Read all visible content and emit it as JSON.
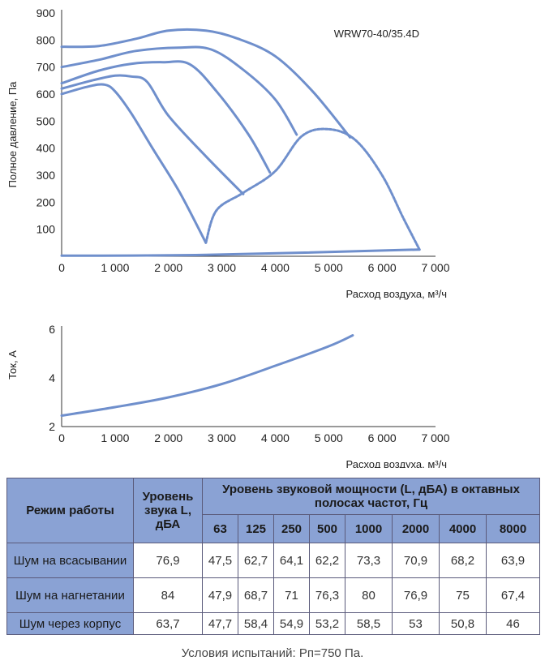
{
  "chart_data": [
    {
      "type": "line",
      "title": "",
      "model_label": "WRW70-40/35.4D",
      "xlabel": "Расход воздуха, м³/ч",
      "ylabel": "Полное давление, Па",
      "xlim": [
        0,
        7000
      ],
      "ylim": [
        0,
        900
      ],
      "xticks": [
        "0",
        "1 000",
        "2 000",
        "3 000",
        "4 000",
        "5 000",
        "6 000",
        "7 000"
      ],
      "yticks": [
        "100",
        "200",
        "300",
        "400",
        "500",
        "600",
        "700",
        "800",
        "900"
      ],
      "grid": false,
      "series": [
        {
          "style": "solid",
          "x": [
            0,
            700,
            1400,
            2000,
            2700,
            3300,
            4000,
            4700,
            5400
          ],
          "y": [
            775,
            778,
            805,
            835,
            835,
            805,
            740,
            610,
            440
          ]
        },
        {
          "style": "solid",
          "x": [
            0,
            700,
            1400,
            2200,
            2800,
            3400,
            4000,
            4400
          ],
          "y": [
            700,
            727,
            760,
            772,
            765,
            690,
            580,
            450
          ]
        },
        {
          "style": "solid",
          "x": [
            0,
            700,
            1300,
            1900,
            2400,
            2900,
            3500,
            3900
          ],
          "y": [
            640,
            687,
            712,
            718,
            710,
            610,
            450,
            310
          ]
        },
        {
          "style": "solid",
          "x": [
            0,
            600,
            1000,
            1300,
            1600,
            2000,
            2700,
            3400
          ],
          "y": [
            620,
            652,
            668,
            665,
            645,
            520,
            370,
            230
          ]
        },
        {
          "style": "solid",
          "x": [
            0,
            500,
            800,
            1000,
            1300,
            1700,
            2200,
            2700
          ],
          "y": [
            600,
            628,
            635,
            610,
            530,
            400,
            240,
            50
          ]
        },
        {
          "style": "dashed",
          "x": [
            2700,
            2900,
            3400,
            4000,
            4500,
            5000,
            5500,
            6000,
            6400,
            6700
          ],
          "y": [
            50,
            170,
            235,
            315,
            445,
            470,
            430,
            300,
            140,
            25
          ]
        },
        {
          "style": "solid",
          "x": [
            0,
            2700,
            6700
          ],
          "y": [
            2,
            5,
            25
          ]
        }
      ]
    },
    {
      "type": "line",
      "title": "",
      "xlabel": "Расход воздуха, м³/ч",
      "ylabel": "Ток, А",
      "xlim": [
        0,
        7000
      ],
      "ylim": [
        2,
        6
      ],
      "xticks": [
        "0",
        "1 000",
        "2 000",
        "3 000",
        "4 000",
        "5 000",
        "6 000",
        "7 000"
      ],
      "yticks": [
        "2",
        "4",
        "6"
      ],
      "grid": false,
      "series": [
        {
          "style": "solid",
          "x": [
            0,
            1000,
            2000,
            3000,
            4000,
            5000,
            5450
          ],
          "y": [
            2.45,
            2.8,
            3.2,
            3.75,
            4.5,
            5.3,
            5.75
          ]
        }
      ]
    }
  ],
  "colors": {
    "curve": "#6f8fcc",
    "table_header": "#8aa2d4",
    "axis": "#333333"
  },
  "table": {
    "col_mode": "Режим работы",
    "col_level": "Уровень звука L, дБА",
    "col_power": "Уровень звуковой мощности (L, дБА) в октавных полосах частот, Гц",
    "frequencies": [
      "63",
      "125",
      "250",
      "500",
      "1000",
      "2000",
      "4000",
      "8000"
    ],
    "rows": [
      {
        "mode": "Шум на всасывании",
        "level": "76,9",
        "values": [
          "47,5",
          "62,7",
          "64,1",
          "62,2",
          "73,3",
          "70,9",
          "68,2",
          "63,9"
        ]
      },
      {
        "mode": "Шум на нагнетании",
        "level": "84",
        "values": [
          "47,9",
          "68,7",
          "71",
          "76,3",
          "80",
          "76,9",
          "75",
          "67,4"
        ]
      },
      {
        "mode": "Шум через корпус",
        "level": "63,7",
        "values": [
          "47,7",
          "58,4",
          "54,9",
          "53,2",
          "58,5",
          "53",
          "50,8",
          "46"
        ]
      }
    ]
  },
  "footnote": "Условия испытаний: Рп=750 Па."
}
